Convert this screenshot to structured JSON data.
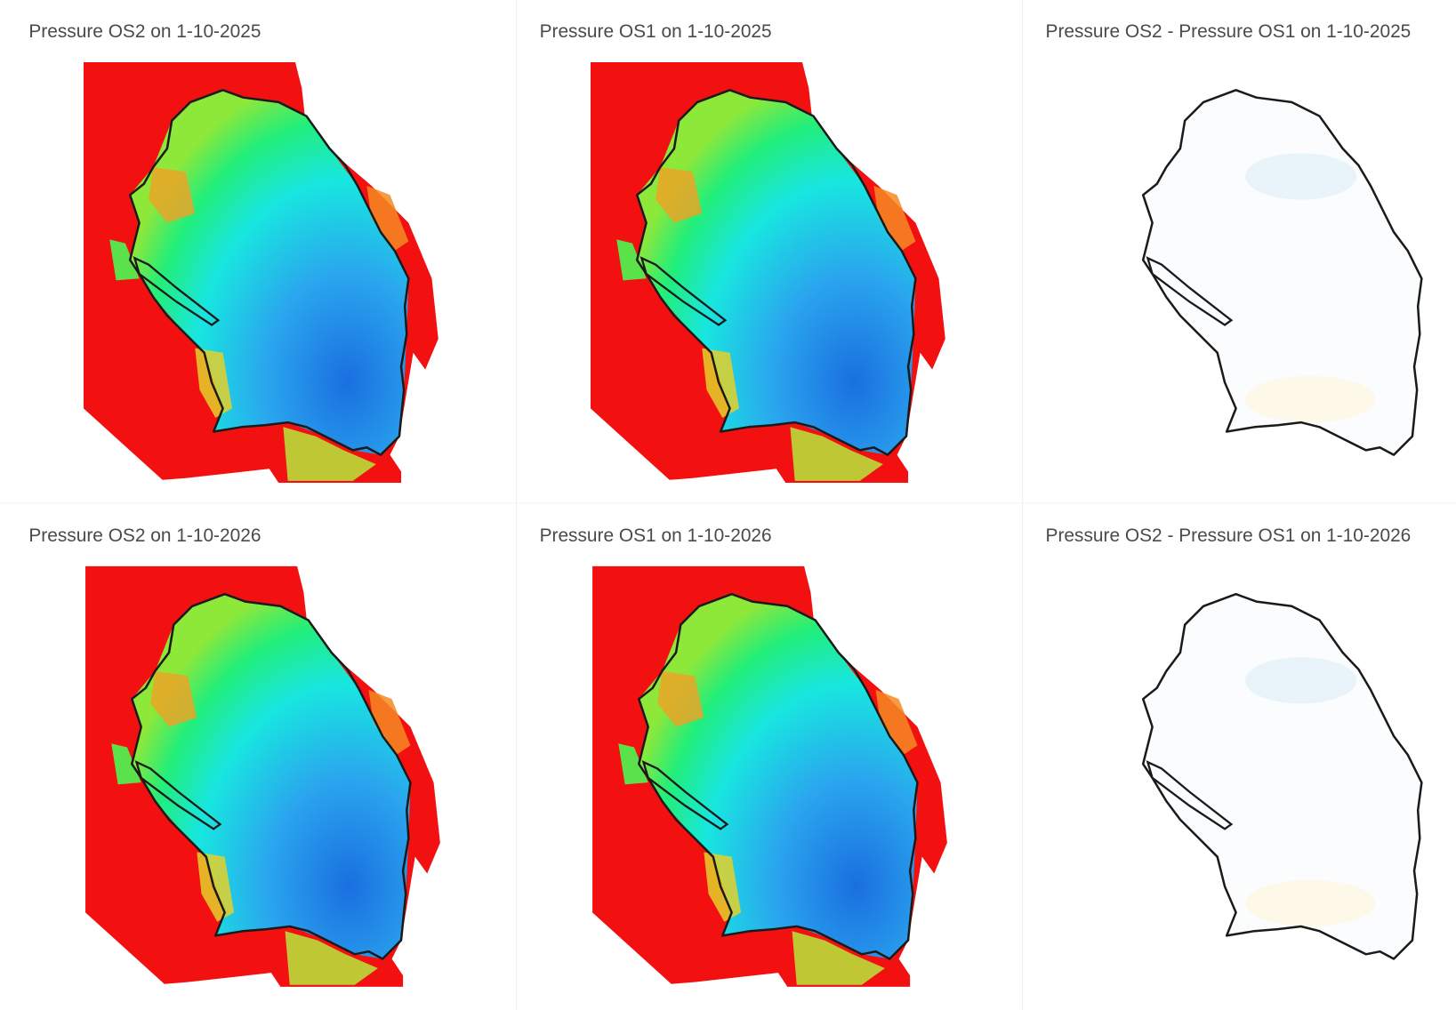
{
  "panels": [
    {
      "title": "Pressure OS2 on 1-10-2025"
    },
    {
      "title": "Pressure OS1 on 1-10-2025"
    },
    {
      "title": "Pressure OS2 - Pressure OS1 on 1-10-2025"
    },
    {
      "title": "Pressure OS2 on 1-10-2026"
    },
    {
      "title": "Pressure OS1 on 1-10-2026"
    },
    {
      "title": "Pressure OS2 - Pressure OS1 on 1-10-2026"
    }
  ]
}
